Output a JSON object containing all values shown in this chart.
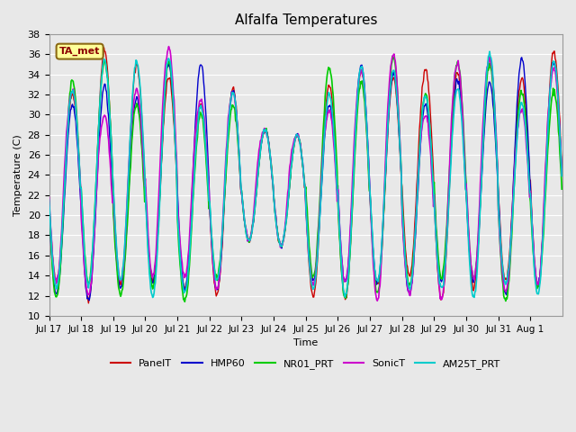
{
  "title": "Alfalfa Temperatures",
  "ylabel": "Temperature (C)",
  "xlabel": "Time",
  "annotation": "TA_met",
  "annotation_color": "#8B0000",
  "annotation_bg": "#FFFF99",
  "annotation_border": "#8B6914",
  "ylim": [
    10,
    38
  ],
  "background_color": "#E8E8E8",
  "plot_bg": "#E8E8E8",
  "grid_color": "#FFFFFF",
  "series": {
    "PanelT": {
      "color": "#CC0000",
      "lw": 1.0,
      "zorder": 3
    },
    "HMP60": {
      "color": "#0000CC",
      "lw": 1.0,
      "zorder": 4
    },
    "NR01_PRT": {
      "color": "#00CC00",
      "lw": 1.2,
      "zorder": 5
    },
    "SonicT": {
      "color": "#CC00CC",
      "lw": 1.2,
      "zorder": 6
    },
    "AM25T_PRT": {
      "color": "#00CCCC",
      "lw": 1.2,
      "zorder": 7
    }
  },
  "xtick_positions": [
    0,
    24,
    48,
    72,
    96,
    120,
    144,
    168,
    192,
    216,
    240,
    264,
    288,
    312,
    336,
    360
  ],
  "xtick_labels": [
    "Jul 17",
    "Jul 18",
    "Jul 19",
    "Jul 20",
    "Jul 21",
    "Jul 22",
    "Jul 23",
    "Jul 24",
    "Jul 25",
    "Jul 26",
    "Jul 27",
    "Jul 28",
    "Jul 29",
    "Jul 30",
    "Jul 31",
    "Aug 1"
  ],
  "ytick_labels": [
    10,
    12,
    14,
    16,
    18,
    20,
    22,
    24,
    26,
    28,
    30,
    32,
    34,
    36,
    38
  ],
  "n_days": 16,
  "xlim": [
    0,
    384
  ]
}
